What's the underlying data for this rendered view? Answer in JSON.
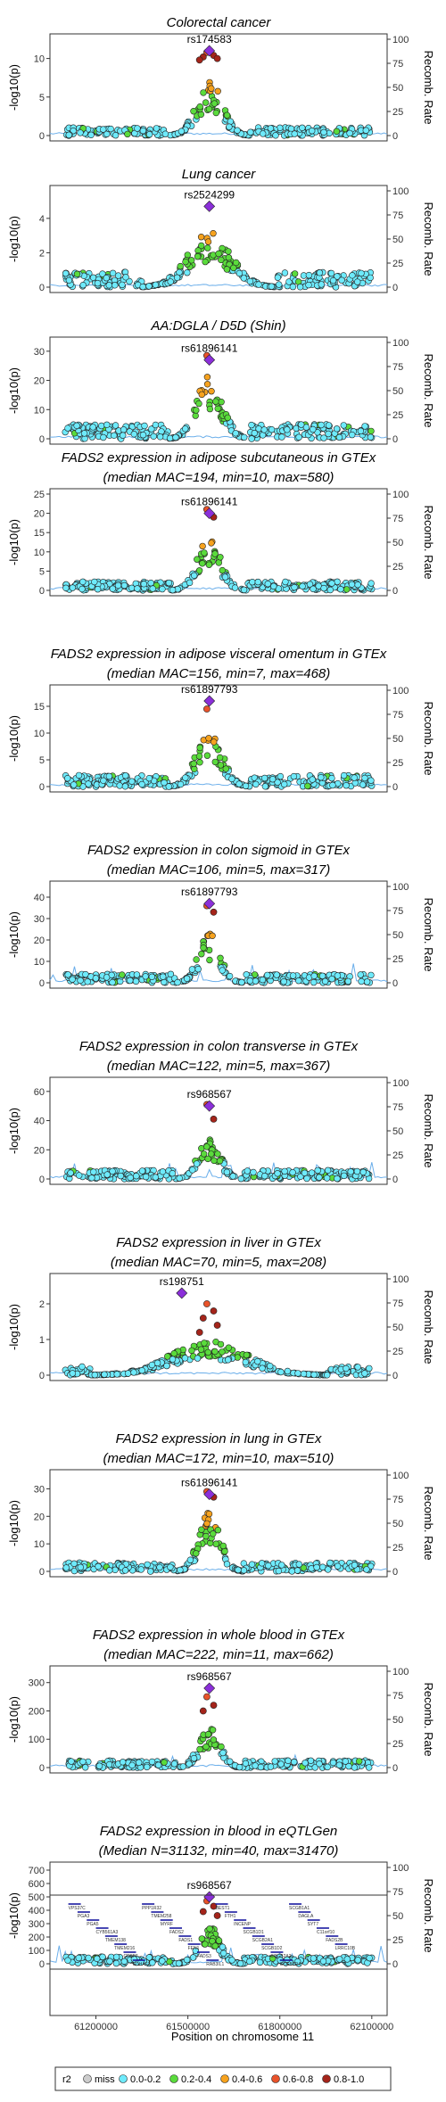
{
  "figure": {
    "left_axis_label": "-log10(p)",
    "right_axis_label": "Recomb. Rate",
    "x_axis_label": "Position on chromosome 11",
    "x_ticks": [
      61200000,
      61500000,
      61800000,
      62100000
    ],
    "x_range": [
      61050000,
      62150000
    ],
    "recomb_ticks": [
      0,
      25,
      50,
      75,
      100
    ],
    "colors": {
      "miss": "#cccccc",
      "0.0-0.2": "#6eeafb",
      "0.2-0.4": "#5adb3c",
      "0.4-0.6": "#f6a21e",
      "0.6-0.8": "#e8532a",
      "0.8-1.0": "#a4241a",
      "lead": "#8b2fd9",
      "recomb_line": "#6aaeea"
    },
    "legend": {
      "title": "r2",
      "entries": [
        "miss",
        "0.0-0.2",
        "0.2-0.4",
        "0.4-0.6",
        "0.6-0.8",
        "0.8-1.0"
      ]
    }
  },
  "chart_data": [
    {
      "type": "scatter",
      "title_lines": [
        "Colorectal cancer"
      ],
      "lead_snp": "rs174583",
      "lead_p": 11,
      "yticks": [
        0,
        5,
        10
      ],
      "ylim": [
        0,
        12.5
      ],
      "hi": [
        10.8,
        10.4,
        10.2,
        10.0,
        9.8
      ],
      "peak": 7.2,
      "noise": 1.4,
      "spread": 0.12,
      "recomb_style": "flat"
    },
    {
      "type": "scatter",
      "title_lines": [
        "Lung cancer"
      ],
      "lead_snp": "rs2524299",
      "lead_p": 4.7,
      "yticks": [
        0,
        2,
        4
      ],
      "ylim": [
        0,
        5.6
      ],
      "hi": [],
      "peak": 3.2,
      "noise": 2.6,
      "spread": 0.2,
      "recomb_style": "flat"
    },
    {
      "type": "scatter",
      "title_lines": [
        "AA:DGLA / D5D (Shin)"
      ],
      "lead_snp": "rs61896141",
      "lead_p": 27,
      "yticks": [
        0,
        10,
        20,
        30
      ],
      "ylim": [
        0,
        33
      ],
      "hi": [
        28.5
      ],
      "peak": 22,
      "noise": 2.5,
      "spread": 0.12,
      "recomb_style": "flat"
    },
    {
      "type": "scatter",
      "title_lines": [
        "FADS2 expression in adipose subcutaneous in GTEx",
        "(median MAC=194, min=10, max=580)"
      ],
      "lead_snp": "rs61896141",
      "lead_p": 20,
      "yticks": [
        0,
        5,
        10,
        15,
        20,
        25
      ],
      "ylim": [
        0,
        25
      ],
      "hi": [
        21,
        19
      ],
      "peak": 14,
      "noise": 1.5,
      "spread": 0.11,
      "recomb_style": "flat"
    },
    {
      "type": "scatter",
      "title_lines": [
        "FADS2 expression in adipose visceral omentum in GTEx",
        "(median MAC=156, min=7, max=468)"
      ],
      "lead_snp": "rs61897793",
      "lead_p": 16,
      "yticks": [
        0,
        5,
        10,
        15
      ],
      "ylim": [
        0,
        18
      ],
      "hi": [
        14.5
      ],
      "peak": 10.5,
      "noise": 2.0,
      "spread": 0.12,
      "recomb_style": "flat"
    },
    {
      "type": "scatter",
      "title_lines": [
        "FADS2 expression in colon sigmoid in GTEx",
        "(median MAC=106, min=5, max=317)"
      ],
      "lead_snp": "rs61897793",
      "lead_p": 37,
      "yticks": [
        0,
        10,
        20,
        30,
        40
      ],
      "ylim": [
        0,
        45
      ],
      "hi": [
        36,
        33
      ],
      "peak": 23,
      "noise": 1.5,
      "spread": 0.1,
      "recomb_style": "spiky"
    },
    {
      "type": "scatter",
      "title_lines": [
        "FADS2 expression in colon transverse in GTEx",
        "(median MAC=122, min=5, max=367)"
      ],
      "lead_snp": "rs968567",
      "lead_p": 50,
      "yticks": [
        0,
        20,
        40,
        60
      ],
      "ylim": [
        0,
        66
      ],
      "hi": [
        51,
        41
      ],
      "peak": 30,
      "noise": 1.5,
      "spread": 0.1,
      "recomb_style": "spiky"
    },
    {
      "type": "scatter",
      "title_lines": [
        "FADS2 expression in liver in GTEx",
        "(median MAC=70, min=5, max=208)"
      ],
      "lead_snp": "rs198751",
      "lead_p": 2.3,
      "yticks": [
        0,
        1,
        2
      ],
      "ylim": [
        0,
        2.7
      ],
      "hi": [
        2.0,
        1.8,
        1.6,
        1.4,
        1.2
      ],
      "peak": 1.0,
      "noise": 1.5,
      "spread": 0.35,
      "recomb_style": "flat"
    },
    {
      "type": "scatter",
      "title_lines": [
        "FADS2 expression in lung in GTEx",
        "(median MAC=172, min=10, max=510)"
      ],
      "lead_snp": "rs61896141",
      "lead_p": 28,
      "yticks": [
        0,
        10,
        20,
        30
      ],
      "ylim": [
        0,
        35
      ],
      "hi": [
        29,
        27
      ],
      "peak": 22,
      "noise": 1.5,
      "spread": 0.1,
      "recomb_style": "flat"
    },
    {
      "type": "scatter",
      "title_lines": [
        "FADS2 expression in whole blood in GTEx",
        "(median MAC=222, min=11, max=662)"
      ],
      "lead_snp": "rs968567",
      "lead_p": 280,
      "yticks": [
        0,
        100,
        200,
        300
      ],
      "ylim": [
        0,
        340
      ],
      "hi": [
        250,
        220,
        200
      ],
      "peak": 140,
      "noise": 1.2,
      "spread": 0.1,
      "recomb_style": "spiky"
    },
    {
      "type": "scatter",
      "title_lines": [
        "FADS2 expression in blood in eQTLGen",
        "(Median N=31132, min=40, max=31470)"
      ],
      "lead_snp": "rs968567",
      "lead_p": 500,
      "yticks": [
        0,
        100,
        200,
        300,
        400,
        500,
        600,
        700
      ],
      "ylim": [
        0,
        720
      ],
      "hi": [
        470,
        430,
        390,
        360
      ],
      "peak": 290,
      "noise": 1.2,
      "spread": 0.1,
      "recomb_style": "spiky"
    }
  ],
  "genes": [
    "VPS37C",
    "PGA3",
    "PGA5",
    "CYB561A3",
    "TMEM138",
    "TMEM216",
    "CPSF7",
    "SDHAF2",
    "PPP1R32",
    "TMEM258",
    "MYRF",
    "FADS2",
    "FADS1",
    "FEN1",
    "FADS3",
    "RAB3IL1",
    "BEST1",
    "FTH1",
    "INCENP",
    "SCGB1D1",
    "SCGB2A1",
    "SCGB1D2",
    "SCGB2A2",
    "SCGB1D4",
    "SCGB1A1",
    "DAGLA",
    "SYT7",
    "C11orf10",
    "FADS2B",
    "LRRC10B"
  ]
}
